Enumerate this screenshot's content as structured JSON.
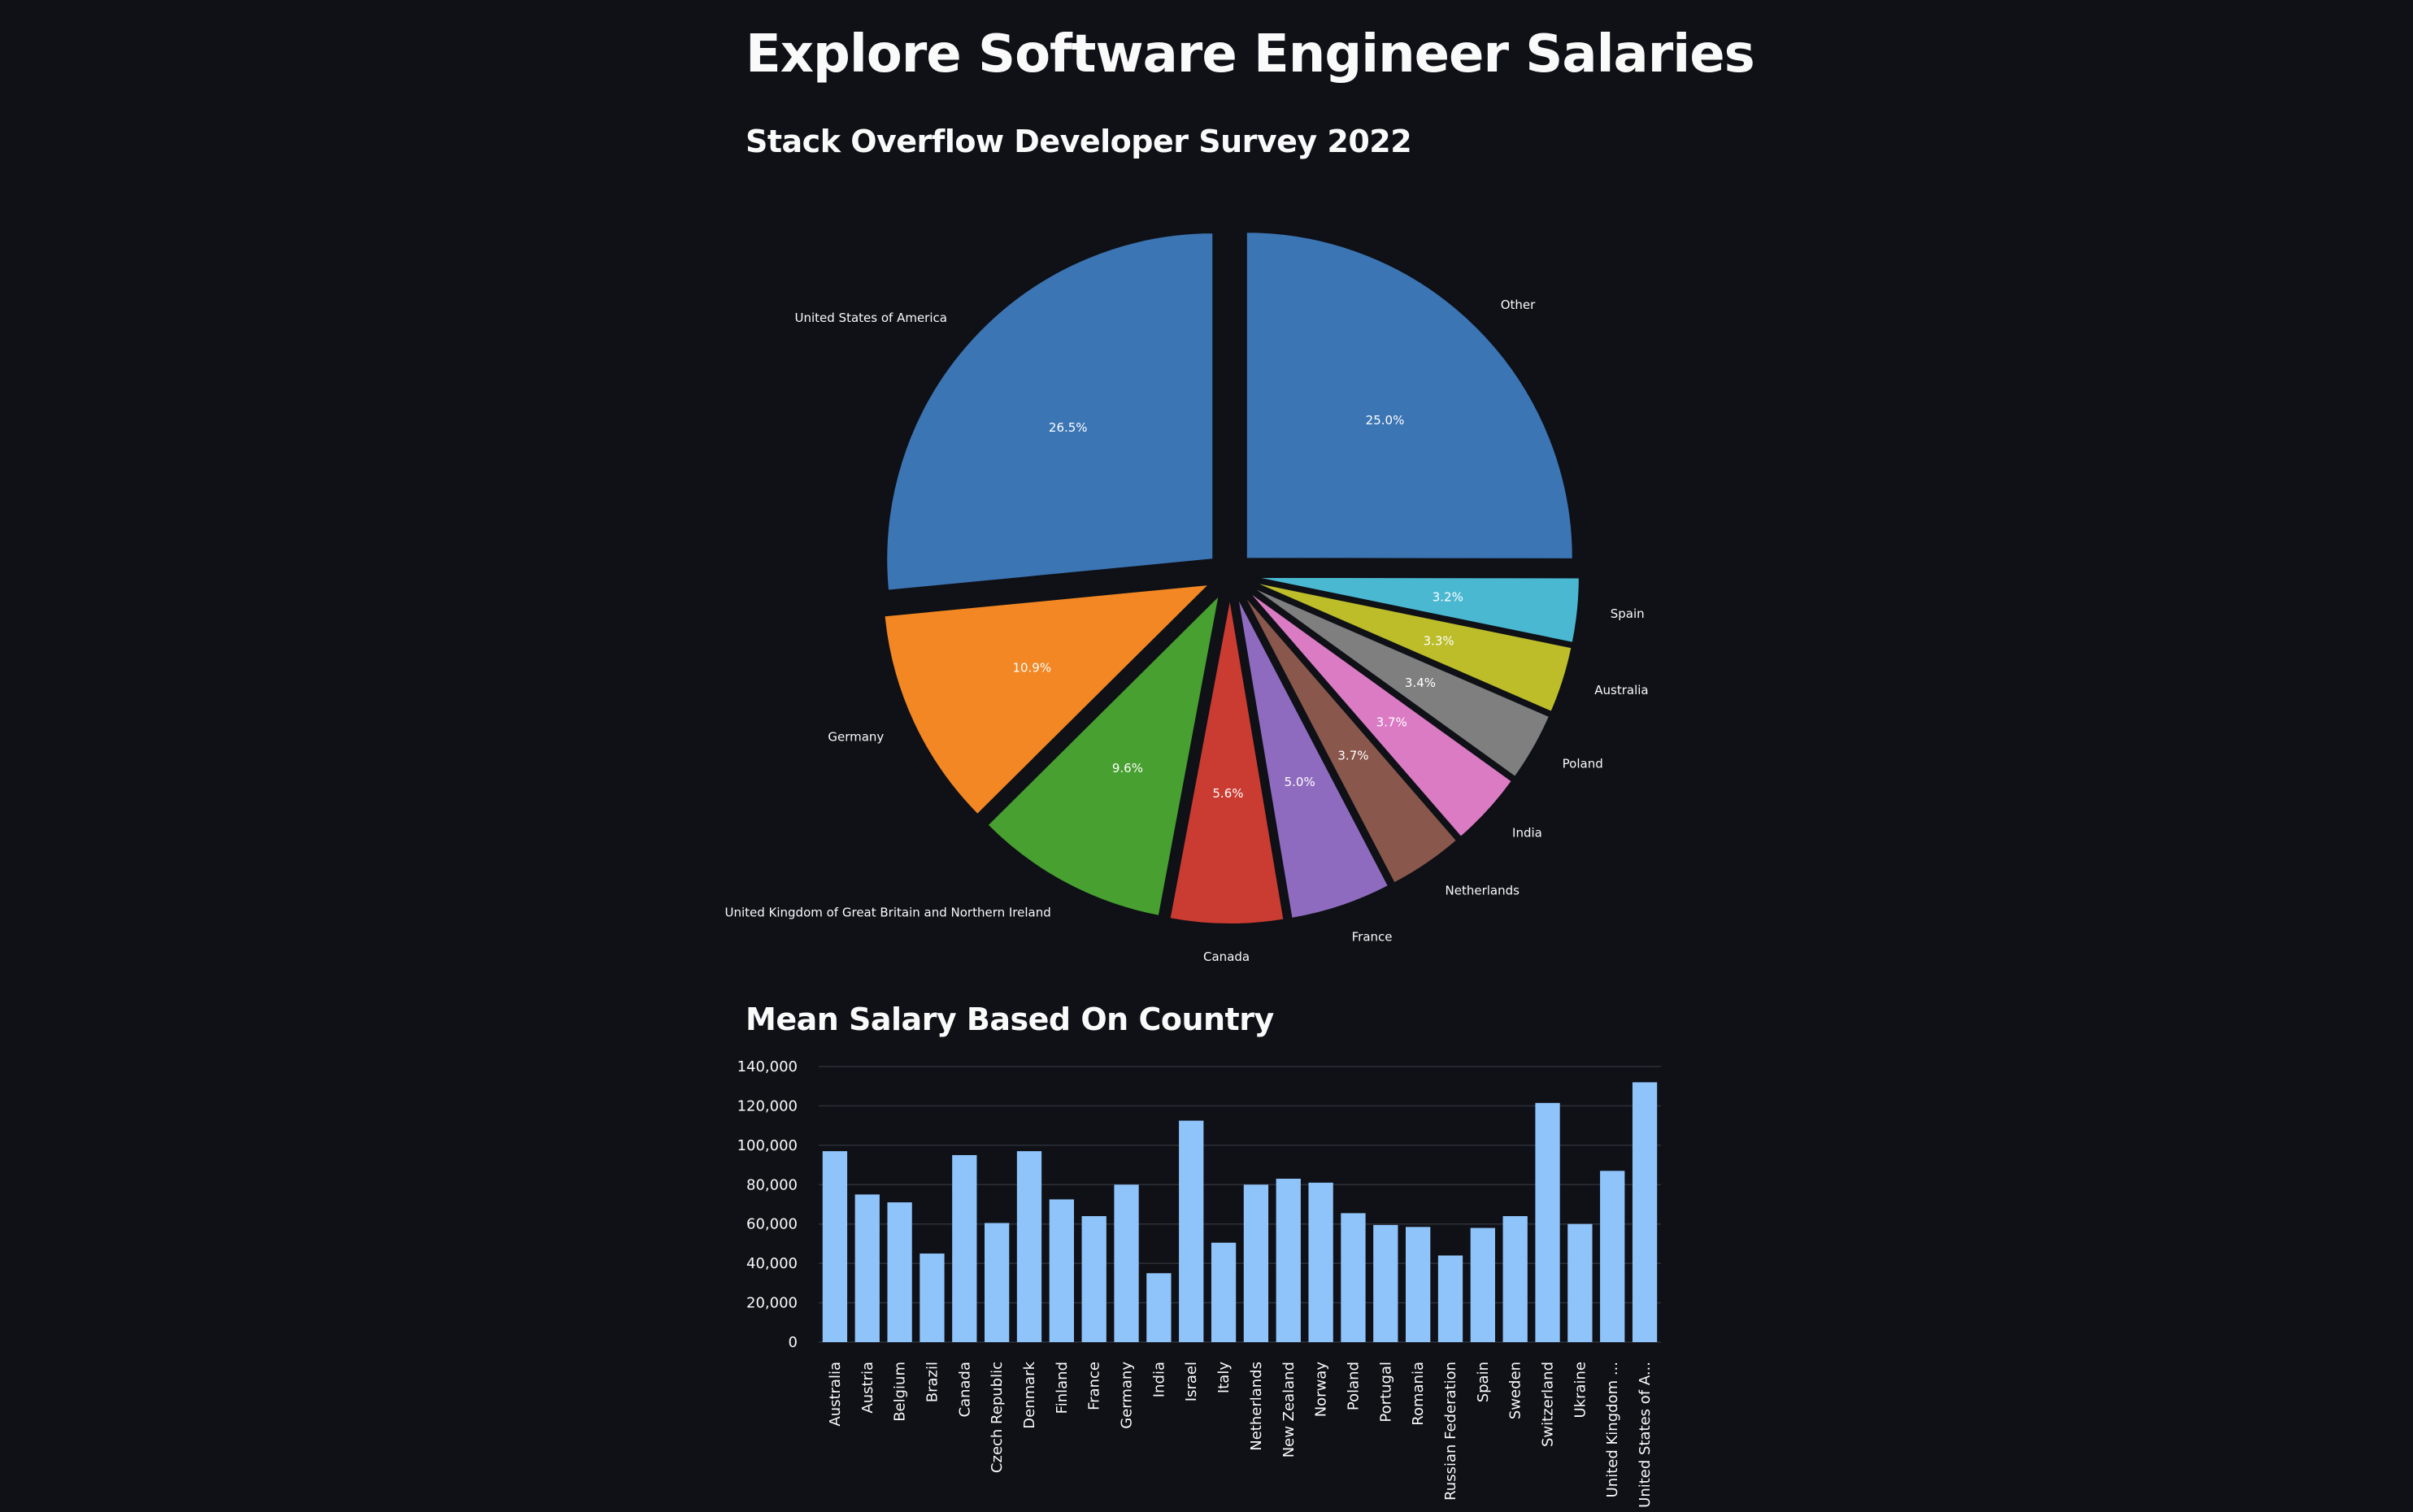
{
  "page": {
    "title": "Explore Software Engineer Salaries",
    "pie_section_title": "Stack Overflow Developer Survey 2022",
    "bar_section_title": "Mean Salary Based On Country"
  },
  "chart_data": [
    {
      "type": "pie",
      "title": "",
      "exploded": true,
      "start_direction": "north, counter-clockwise",
      "slices": [
        {
          "label": "United States of America",
          "value": 26.5,
          "pct_label": "26.5%",
          "color": "#3b75b4"
        },
        {
          "label": "Germany",
          "value": 10.9,
          "pct_label": "10.9%",
          "color": "#f28723"
        },
        {
          "label": "United Kingdom of Great Britain and Northern Ireland",
          "value": 9.6,
          "pct_label": "9.6%",
          "color": "#47a02f"
        },
        {
          "label": "Canada",
          "value": 5.6,
          "pct_label": "5.6%",
          "color": "#ca3b31"
        },
        {
          "label": "France",
          "value": 5.0,
          "pct_label": "5.0%",
          "color": "#8f6bbf"
        },
        {
          "label": "Netherlands",
          "value": 3.7,
          "pct_label": "3.7%",
          "color": "#8a574d"
        },
        {
          "label": "India",
          "value": 3.7,
          "pct_label": "3.7%",
          "color": "#db7bc4"
        },
        {
          "label": "Poland",
          "value": 3.4,
          "pct_label": "3.4%",
          "color": "#7f7f7f"
        },
        {
          "label": "Australia",
          "value": 3.3,
          "pct_label": "3.3%",
          "color": "#bcbd29"
        },
        {
          "label": "Spain",
          "value": 3.2,
          "pct_label": "3.2%",
          "color": "#4bb8d1"
        },
        {
          "label": "Other",
          "value": 25.0,
          "pct_label": "25.0%",
          "color": "#3b75b4"
        }
      ]
    },
    {
      "type": "bar",
      "title": "",
      "xlabel": "",
      "ylabel": "",
      "ylim": [
        0,
        140000
      ],
      "yticks": [
        0,
        20000,
        40000,
        60000,
        80000,
        100000,
        120000,
        140000
      ],
      "ytick_labels": [
        "0",
        "20,000",
        "40,000",
        "60,000",
        "80,000",
        "100,000",
        "120,000",
        "140,000"
      ],
      "grid": true,
      "bar_color": "#8fc4fb",
      "categories": [
        "Australia",
        "Austria",
        "Belgium",
        "Brazil",
        "Canada",
        "Czech Republic",
        "Denmark",
        "Finland",
        "France",
        "Germany",
        "India",
        "Israel",
        "Italy",
        "Netherlands",
        "New Zealand",
        "Norway",
        "Poland",
        "Portugal",
        "Romania",
        "Russian Federation",
        "Spain",
        "Sweden",
        "Switzerland",
        "Ukraine",
        "United Kingdom ...",
        "United States of A..."
      ],
      "values": [
        97000,
        75000,
        71000,
        45000,
        95000,
        60500,
        97000,
        72500,
        64000,
        80000,
        35000,
        112500,
        50500,
        80000,
        83000,
        81000,
        65500,
        59500,
        58500,
        44000,
        58000,
        64000,
        121500,
        60000,
        87000,
        132000
      ]
    }
  ]
}
